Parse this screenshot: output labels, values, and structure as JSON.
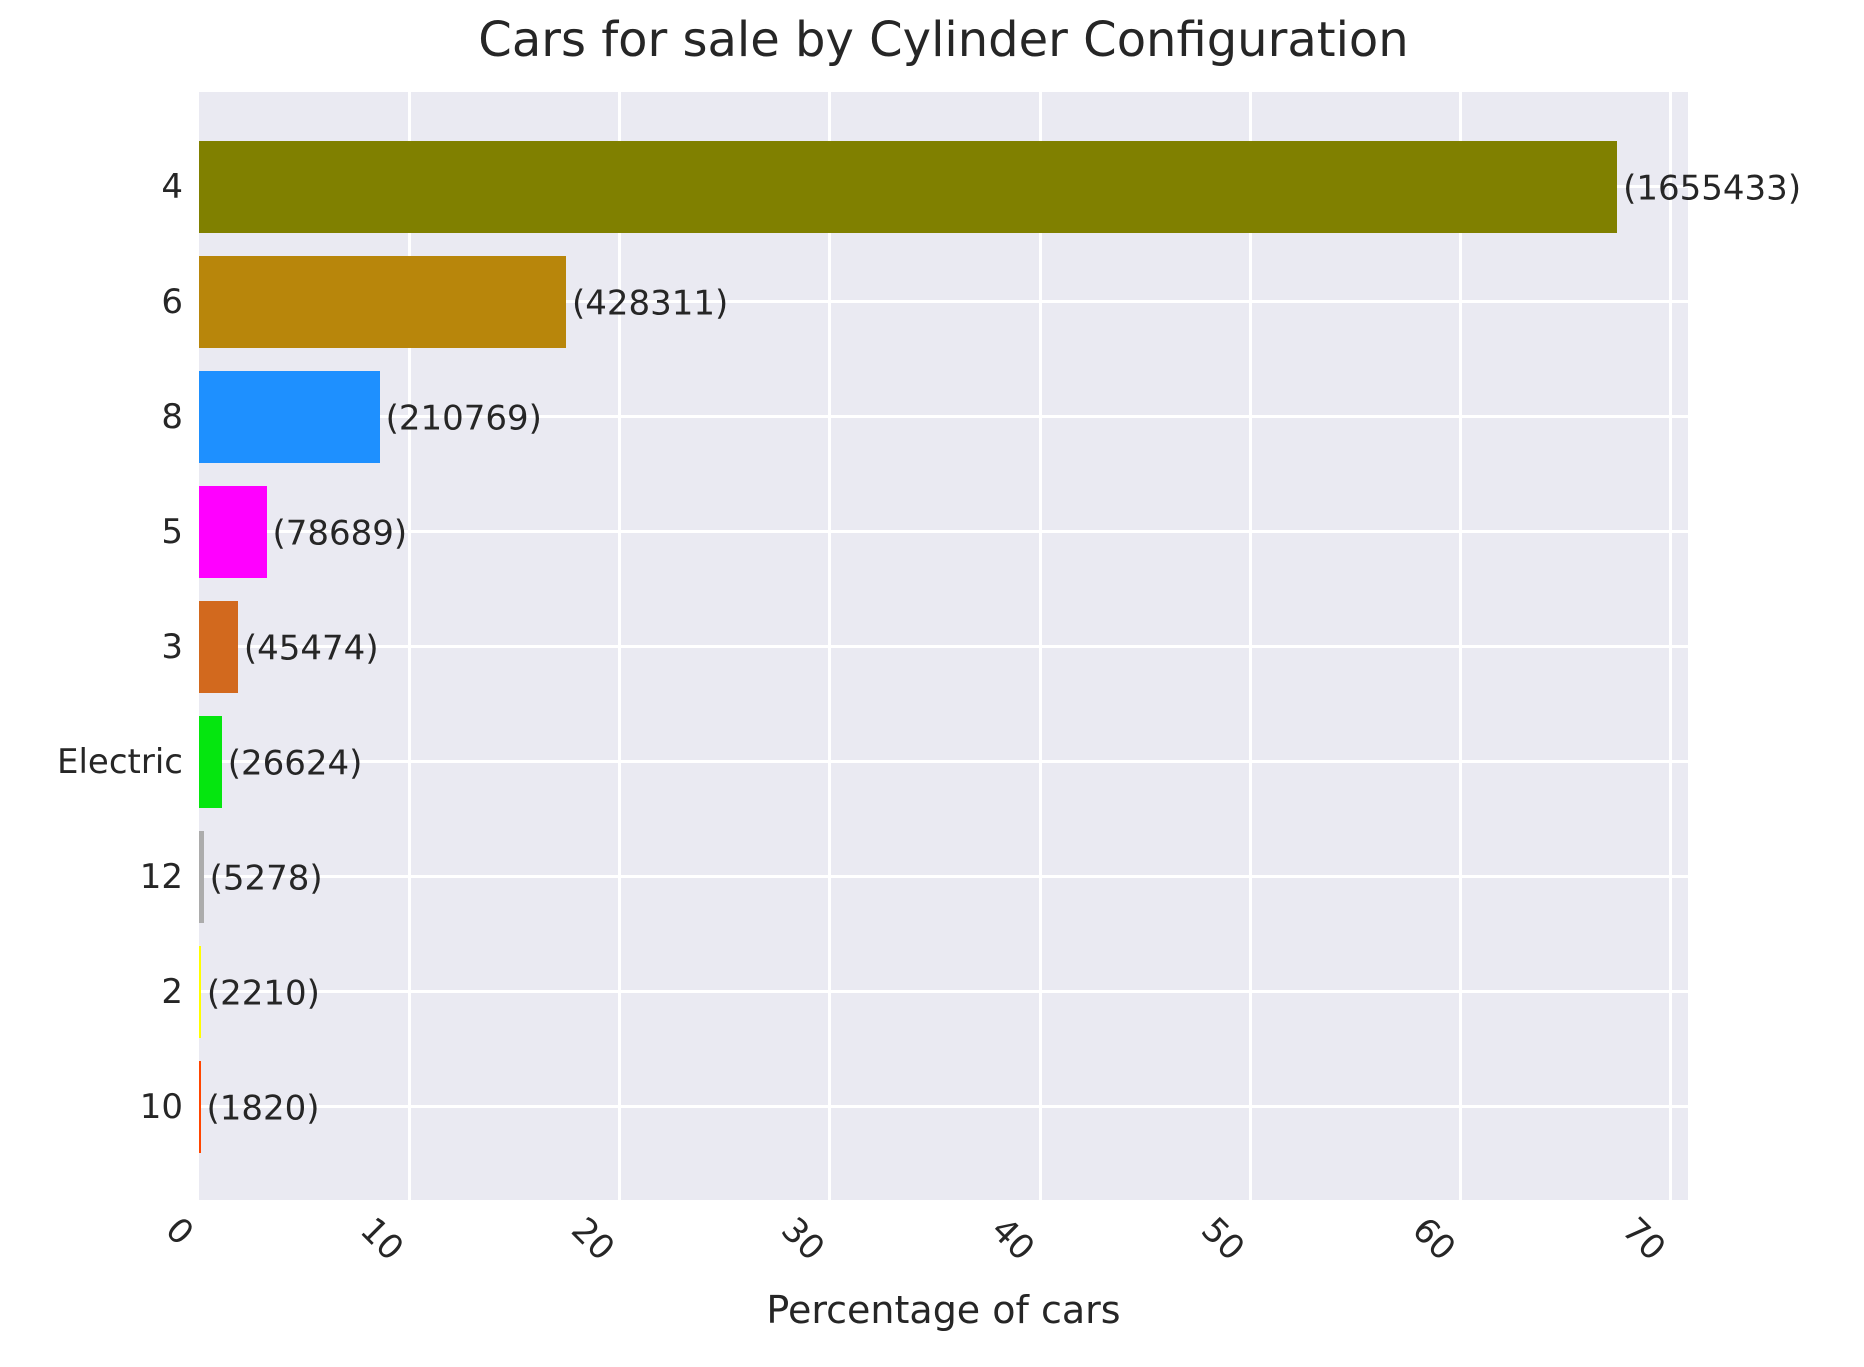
{
  "chart_data": {
    "type": "bar",
    "orientation": "horizontal",
    "title": "Cars for sale by Cylinder Configuration",
    "xlabel": "Percentage of cars",
    "ylabel": "",
    "categories": [
      "4",
      "6",
      "8",
      "5",
      "3",
      "Electric",
      "12",
      "2",
      "10"
    ],
    "series": [
      {
        "name": "Percentage of cars",
        "values_percent": [
          67.44,
          17.45,
          8.59,
          3.21,
          1.85,
          1.08,
          0.22,
          0.09,
          0.07
        ],
        "counts": [
          1655433,
          428311,
          210769,
          78689,
          45474,
          26624,
          5278,
          2210,
          1820
        ]
      }
    ],
    "annotations": [
      "(1655433)",
      "(428311)",
      "(210769)",
      "(78689)",
      "(45474)",
      "(26624)",
      "(5278)",
      "(2210)",
      "(1820)"
    ],
    "bar_colors": [
      "#808000",
      "#B8860B",
      "#1E90FF",
      "#FF00FF",
      "#D2691E",
      "#05E60F",
      "#ACACAC",
      "#FFFF00",
      "#FF4500"
    ],
    "xlim": [
      0,
      70.81
    ],
    "xticks": [
      "0",
      "10",
      "20",
      "30",
      "40",
      "50",
      "60",
      "70"
    ],
    "xtick_rotation_deg": 45,
    "grid": true,
    "legend_position": "none",
    "styles": {
      "figure_bg": "#FFFFFF",
      "plot_bg": "#EAEAF2",
      "grid_color": "#FFFFFF",
      "text_color": "#262626"
    }
  }
}
